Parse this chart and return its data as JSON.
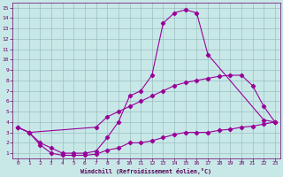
{
  "xlabel": "Windchill (Refroidissement éolien,°C)",
  "xlim": [
    -0.5,
    23.5
  ],
  "ylim": [
    0.5,
    15.5
  ],
  "bg_color": "#c8e8e8",
  "line_color": "#990099",
  "grid_color": "#9bbfbf",
  "curve1_x": [
    0,
    1,
    2,
    3,
    4,
    5,
    6,
    7,
    8,
    9,
    10,
    11,
    12,
    13,
    14,
    15,
    16,
    17,
    22,
    23
  ],
  "curve1_y": [
    3.5,
    3.0,
    2.0,
    1.5,
    1.0,
    1.0,
    1.0,
    1.2,
    2.5,
    4.0,
    6.5,
    7.0,
    8.5,
    13.5,
    14.5,
    14.8,
    14.5,
    10.5,
    4.2,
    4.0
  ],
  "curve2_x": [
    0,
    1,
    7,
    8,
    9,
    10,
    11,
    12,
    13,
    14,
    15,
    16,
    17,
    18,
    19,
    20,
    21,
    22,
    23
  ],
  "curve2_y": [
    3.5,
    3.0,
    3.5,
    4.5,
    5.0,
    5.5,
    6.0,
    6.5,
    7.0,
    7.5,
    7.8,
    8.0,
    8.2,
    8.4,
    8.5,
    8.5,
    7.5,
    5.5,
    4.0
  ],
  "curve3_x": [
    0,
    1,
    2,
    3,
    4,
    5,
    6,
    7,
    8,
    9,
    10,
    11,
    12,
    13,
    14,
    15,
    16,
    17,
    18,
    19,
    20,
    21,
    22,
    23
  ],
  "curve3_y": [
    3.5,
    3.0,
    1.8,
    1.0,
    0.8,
    0.8,
    0.8,
    0.9,
    1.3,
    1.5,
    2.0,
    2.0,
    2.2,
    2.5,
    2.8,
    3.0,
    3.0,
    3.0,
    3.2,
    3.3,
    3.5,
    3.6,
    3.8,
    4.0
  ],
  "xticks": [
    0,
    1,
    2,
    3,
    4,
    5,
    6,
    7,
    8,
    9,
    10,
    11,
    12,
    13,
    14,
    15,
    16,
    17,
    18,
    19,
    20,
    21,
    22,
    23
  ],
  "yticks": [
    1,
    2,
    3,
    4,
    5,
    6,
    7,
    8,
    9,
    10,
    11,
    12,
    13,
    14,
    15
  ]
}
